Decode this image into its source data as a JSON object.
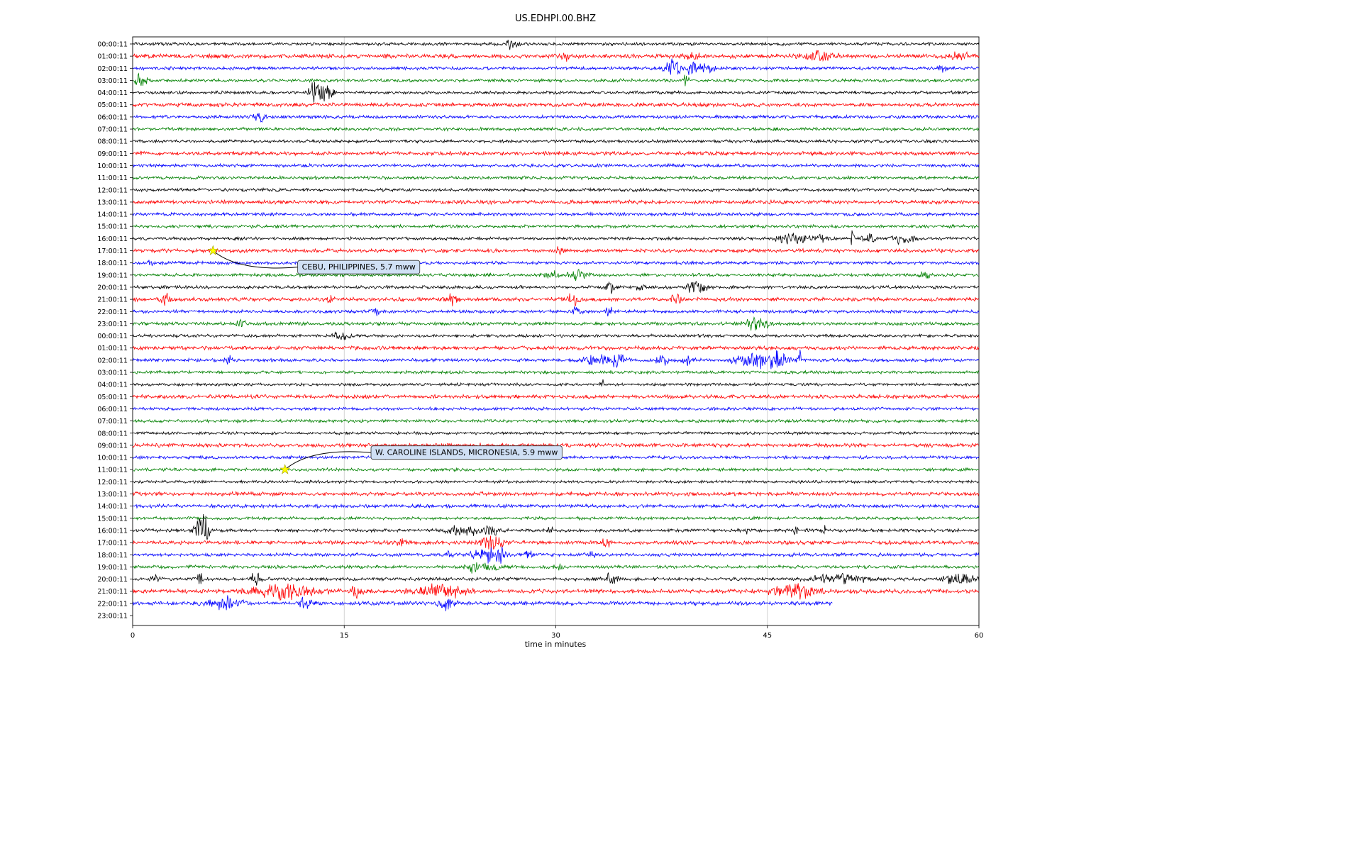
{
  "chart_data": {
    "type": "line",
    "variant": "helicorder-dayplot",
    "title": "US.EDHPI.00.BHZ",
    "xlabel": "time in minutes",
    "x_range": [
      0,
      60
    ],
    "x_ticks": [
      0,
      15,
      30,
      45,
      60
    ],
    "grid": true,
    "palette": {
      "k": "#000000",
      "r": "#ff0000",
      "b": "#0000ff",
      "g": "#008000"
    },
    "annotation_box_color": "#d0e0f5",
    "annotation_border_color": "#333333",
    "star_color": "#ffff00",
    "rows": [
      {
        "label": "00:00:11",
        "c": "k",
        "amp": 1.6,
        "bursts": [
          [
            26.8,
            3.5,
            0.4
          ]
        ]
      },
      {
        "label": "01:00:11",
        "c": "r",
        "amp": 2.2,
        "bursts": [
          [
            30.6,
            2.0,
            0.3
          ],
          [
            39.6,
            2.5,
            0.5
          ],
          [
            48.5,
            2.0,
            1.5
          ],
          [
            58.5,
            1.5,
            0.8
          ]
        ]
      },
      {
        "label": "02:00:11",
        "c": "b",
        "amp": 1.7,
        "bursts": [
          [
            38.2,
            4.5,
            0.5
          ],
          [
            39.5,
            4.0,
            0.8
          ],
          [
            40.8,
            3.0,
            0.4
          ],
          [
            57.3,
            2.0,
            0.3
          ]
        ]
      },
      {
        "label": "03:00:11",
        "c": "g",
        "amp": 1.7,
        "bursts": [
          [
            0.6,
            4.0,
            0.4
          ],
          [
            39.2,
            2.5,
            0.3
          ]
        ]
      },
      {
        "label": "04:00:11",
        "c": "k",
        "amp": 1.6,
        "bursts": [
          [
            12.9,
            7.0,
            0.5
          ],
          [
            13.8,
            6.0,
            0.4
          ]
        ]
      },
      {
        "label": "05:00:11",
        "c": "r",
        "amp": 2.0,
        "bursts": []
      },
      {
        "label": "06:00:11",
        "c": "b",
        "amp": 1.7,
        "bursts": [
          [
            8.9,
            3.0,
            0.4
          ]
        ]
      },
      {
        "label": "07:00:11",
        "c": "g",
        "amp": 1.7,
        "bursts": []
      },
      {
        "label": "08:00:11",
        "c": "k",
        "amp": 1.6,
        "bursts": []
      },
      {
        "label": "09:00:11",
        "c": "r",
        "amp": 2.0,
        "bursts": []
      },
      {
        "label": "10:00:11",
        "c": "b",
        "amp": 1.7,
        "bursts": []
      },
      {
        "label": "11:00:11",
        "c": "g",
        "amp": 1.7,
        "bursts": []
      },
      {
        "label": "12:00:11",
        "c": "k",
        "amp": 1.6,
        "bursts": []
      },
      {
        "label": "13:00:11",
        "c": "r",
        "amp": 2.0,
        "bursts": []
      },
      {
        "label": "14:00:11",
        "c": "b",
        "amp": 1.7,
        "bursts": []
      },
      {
        "label": "15:00:11",
        "c": "g",
        "amp": 1.7,
        "bursts": []
      },
      {
        "label": "16:00:11",
        "c": "k",
        "amp": 1.6,
        "bursts": [
          [
            46.8,
            3.5,
            1.0
          ],
          [
            48.8,
            2.5,
            0.5
          ],
          [
            51.0,
            13.0,
            0.12
          ],
          [
            52.2,
            3.0,
            0.4
          ],
          [
            54.6,
            3.5,
            0.7
          ]
        ]
      },
      {
        "label": "17:00:11",
        "c": "r",
        "amp": 2.0,
        "bursts": [
          [
            30.2,
            1.8,
            0.3
          ]
        ]
      },
      {
        "label": "18:00:11",
        "c": "b",
        "amp": 1.7,
        "bursts": [
          [
            1.2,
            1.5,
            0.3
          ]
        ]
      },
      {
        "label": "19:00:11",
        "c": "g",
        "amp": 1.7,
        "bursts": [
          [
            29.7,
            3.5,
            0.4
          ],
          [
            31.5,
            3.0,
            0.7
          ],
          [
            56.2,
            2.5,
            0.3
          ]
        ]
      },
      {
        "label": "20:00:11",
        "c": "k",
        "amp": 1.7,
        "bursts": [
          [
            33.8,
            4.5,
            0.3
          ],
          [
            36.0,
            2.0,
            0.3
          ],
          [
            39.9,
            3.5,
            0.7
          ]
        ]
      },
      {
        "label": "21:00:11",
        "c": "r",
        "amp": 2.0,
        "bursts": [
          [
            2.3,
            3.5,
            0.4
          ],
          [
            14.0,
            2.0,
            0.3
          ],
          [
            22.6,
            3.0,
            0.4
          ],
          [
            31.2,
            3.0,
            0.4
          ],
          [
            38.5,
            2.5,
            0.4
          ]
        ]
      },
      {
        "label": "22:00:11",
        "c": "b",
        "amp": 1.7,
        "bursts": [
          [
            17.2,
            2.5,
            0.3
          ],
          [
            31.5,
            2.5,
            0.3
          ],
          [
            33.8,
            2.5,
            0.3
          ]
        ]
      },
      {
        "label": "23:00:11",
        "c": "g",
        "amp": 1.7,
        "bursts": [
          [
            7.7,
            3.5,
            0.3
          ],
          [
            44.3,
            5.0,
            0.7
          ]
        ]
      },
      {
        "label": "00:00:11",
        "c": "k",
        "amp": 1.6,
        "bursts": [
          [
            14.7,
            3.5,
            0.5
          ]
        ]
      },
      {
        "label": "01:00:11",
        "c": "r",
        "amp": 2.0,
        "bursts": []
      },
      {
        "label": "02:00:11",
        "c": "b",
        "amp": 1.7,
        "bursts": [
          [
            6.8,
            2.5,
            0.3
          ],
          [
            32.8,
            4.5,
            0.8
          ],
          [
            34.4,
            4.5,
            0.5
          ],
          [
            37.6,
            3.5,
            0.5
          ],
          [
            39.5,
            3.5,
            0.4
          ],
          [
            44.0,
            5.0,
            1.2
          ],
          [
            45.8,
            7.0,
            0.6
          ],
          [
            47.3,
            10.0,
            0.15
          ]
        ]
      },
      {
        "label": "03:00:11",
        "c": "g",
        "amp": 1.6,
        "bursts": []
      },
      {
        "label": "04:00:11",
        "c": "k",
        "amp": 1.5,
        "bursts": [
          [
            33.3,
            3.5,
            0.2
          ]
        ]
      },
      {
        "label": "05:00:11",
        "c": "r",
        "amp": 2.0,
        "bursts": []
      },
      {
        "label": "06:00:11",
        "c": "b",
        "amp": 1.6,
        "bursts": []
      },
      {
        "label": "07:00:11",
        "c": "g",
        "amp": 1.6,
        "bursts": []
      },
      {
        "label": "08:00:11",
        "c": "k",
        "amp": 1.5,
        "bursts": []
      },
      {
        "label": "09:00:11",
        "c": "r",
        "amp": 2.0,
        "bursts": []
      },
      {
        "label": "10:00:11",
        "c": "b",
        "amp": 1.6,
        "bursts": []
      },
      {
        "label": "11:00:11",
        "c": "g",
        "amp": 1.6,
        "bursts": []
      },
      {
        "label": "12:00:11",
        "c": "k",
        "amp": 1.5,
        "bursts": []
      },
      {
        "label": "13:00:11",
        "c": "r",
        "amp": 2.0,
        "bursts": []
      },
      {
        "label": "14:00:11",
        "c": "b",
        "amp": 1.9,
        "bursts": []
      },
      {
        "label": "15:00:11",
        "c": "g",
        "amp": 1.6,
        "bursts": []
      },
      {
        "label": "16:00:11",
        "c": "k",
        "amp": 1.7,
        "bursts": [
          [
            4.9,
            11.0,
            0.45
          ],
          [
            23.7,
            3.5,
            1.2
          ],
          [
            25.4,
            4.0,
            0.5
          ],
          [
            29.5,
            2.5,
            0.3
          ],
          [
            43.6,
            2.5,
            0.15
          ],
          [
            47.0,
            2.5,
            0.15
          ],
          [
            49.0,
            2.5,
            0.15
          ]
        ]
      },
      {
        "label": "17:00:11",
        "c": "r",
        "amp": 2.0,
        "bursts": [
          [
            19.1,
            2.5,
            0.3
          ],
          [
            25.5,
            3.5,
            0.7
          ],
          [
            33.6,
            3.0,
            0.3
          ]
        ]
      },
      {
        "label": "18:00:11",
        "c": "b",
        "amp": 1.8,
        "bursts": [
          [
            22.4,
            2.5,
            0.3
          ],
          [
            25.0,
            5.0,
            0.8
          ],
          [
            26.1,
            4.0,
            0.4
          ],
          [
            28.1,
            2.5,
            0.3
          ],
          [
            32.6,
            2.5,
            0.3
          ]
        ]
      },
      {
        "label": "19:00:11",
        "c": "g",
        "amp": 1.7,
        "bursts": [
          [
            24.1,
            4.0,
            0.4
          ],
          [
            25.3,
            2.5,
            0.6
          ],
          [
            30.1,
            2.0,
            0.3
          ]
        ]
      },
      {
        "label": "20:00:11",
        "c": "k",
        "amp": 1.8,
        "bursts": [
          [
            1.6,
            2.5,
            0.3
          ],
          [
            4.9,
            3.5,
            0.3
          ],
          [
            8.7,
            3.0,
            0.4
          ],
          [
            33.8,
            3.5,
            0.5
          ],
          [
            50.0,
            2.5,
            1.8
          ],
          [
            58.6,
            2.5,
            1.2
          ]
        ]
      },
      {
        "label": "21:00:11",
        "c": "r",
        "amp": 2.2,
        "bursts": [
          [
            10.8,
            3.5,
            2.2
          ],
          [
            15.9,
            2.5,
            0.4
          ],
          [
            21.9,
            3.5,
            1.5
          ],
          [
            46.9,
            3.5,
            1.5
          ]
        ]
      },
      {
        "label": "22:00:11",
        "c": "b",
        "amp": 2.0,
        "bursts": [
          [
            6.6,
            3.5,
            1.0
          ],
          [
            12.2,
            3.5,
            0.4
          ],
          [
            22.3,
            3.5,
            0.5
          ]
        ],
        "end": 49.6
      },
      {
        "label": "23:00:11",
        "c": "g",
        "amp": 0,
        "bursts": [],
        "blank": true
      }
    ],
    "events": [
      {
        "label": "CEBU, PHILIPPINES, 5.7 mww",
        "row": 17,
        "minute": 5.7,
        "box_minute": 11.7,
        "box_row": 18.35
      },
      {
        "label": "W. CAROLINE ISLANDS, MICRONESIA, 5.9 mww",
        "row": 35,
        "minute": 10.8,
        "box_minute": 16.9,
        "box_row": 33.6
      }
    ]
  }
}
